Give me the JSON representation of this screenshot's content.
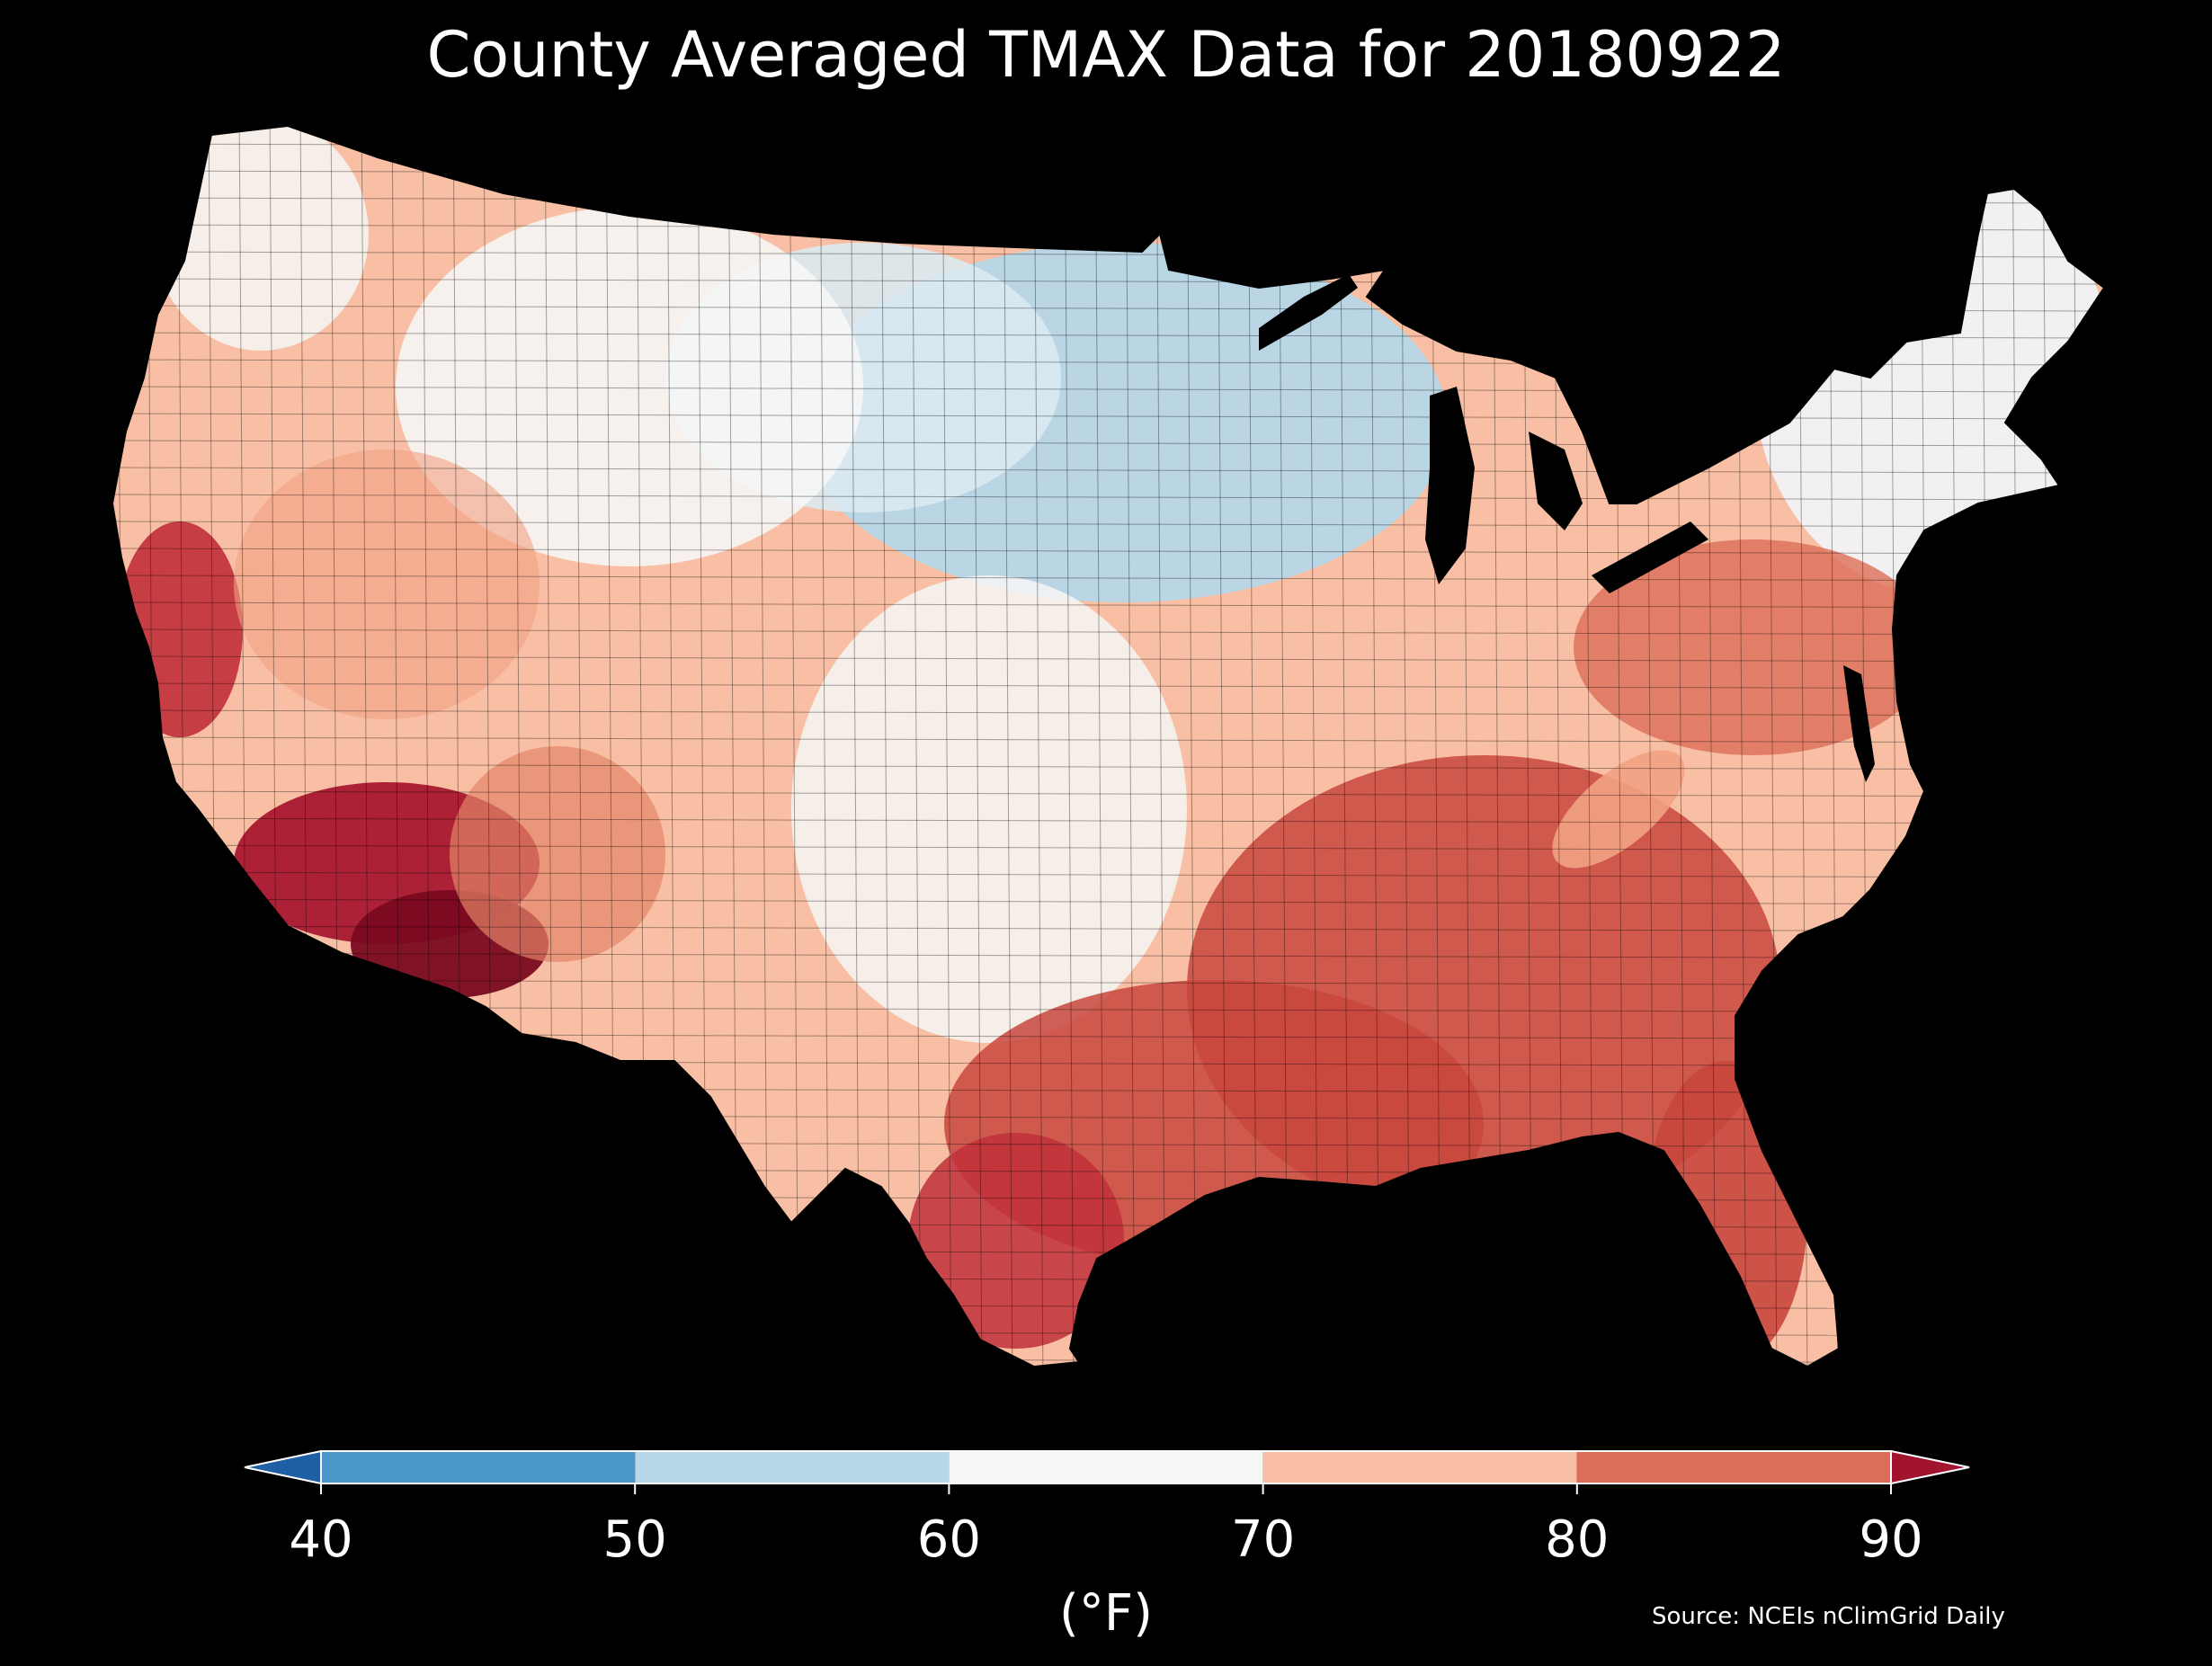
{
  "map": {
    "title": "County Averaged TMAX Data for 20180922",
    "source": "Source: NCEIs nClimGrid Daily",
    "background": "#000000",
    "region": "contiguous-united-states",
    "layer": "county-choropleth",
    "outline_color": "#000000"
  },
  "colorbar": {
    "unit": "(°F)",
    "ticks": [
      "40",
      "50",
      "60",
      "70",
      "80",
      "90"
    ],
    "extend": "both",
    "bins": [
      {
        "from": 40,
        "to": 50,
        "color": "#4a98c9"
      },
      {
        "from": 50,
        "to": 60,
        "color": "#b6d7e8"
      },
      {
        "from": 60,
        "to": 70,
        "color": "#f6f6f6"
      },
      {
        "from": 70,
        "to": 80,
        "color": "#f8bfa4"
      },
      {
        "from": 80,
        "to": 90,
        "color": "#dc6e57"
      }
    ],
    "under_color": "#1f5fa6",
    "over_color": "#a2142e"
  },
  "regions": [
    {
      "name": "northern-plains-upper-midwest",
      "value_band": "50-60"
    },
    {
      "name": "new-england",
      "value_band": "60-70"
    },
    {
      "name": "pacific-northwest-coast",
      "value_band": "60-70"
    },
    {
      "name": "great-basin-and-rockies",
      "value_band": "70-80"
    },
    {
      "name": "central-plains",
      "value_band": "60-70"
    },
    {
      "name": "southeast",
      "value_band": "80-90"
    },
    {
      "name": "desert-southwest",
      "value_band": ">90"
    }
  ]
}
